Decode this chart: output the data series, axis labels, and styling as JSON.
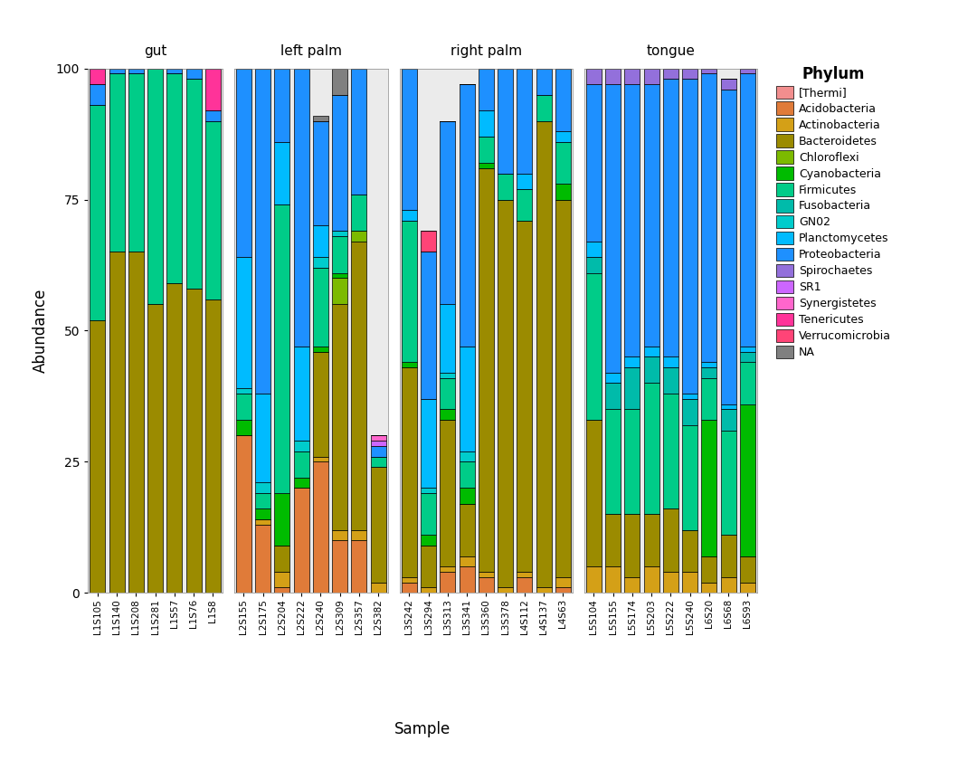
{
  "phylums": [
    "[Thermi]",
    "Acidobacteria",
    "Actinobacteria",
    "Bacteroidetes",
    "Chloroflexi",
    "Cyanobacteria",
    "Firmicutes",
    "Fusobacteria",
    "GN02",
    "Planctomycetes",
    "Proteobacteria",
    "Spirochaetes",
    "SR1",
    "Synergistetes",
    "Tenericutes",
    "Verrucomicrobia",
    "NA"
  ],
  "colors": [
    "#F28E8E",
    "#E07B39",
    "#D4A017",
    "#9B8B00",
    "#7CBA00",
    "#00BB00",
    "#00CC88",
    "#00BBAA",
    "#00CCCC",
    "#00BBFF",
    "#1E90FF",
    "#9370DB",
    "#CC66FF",
    "#FF66CC",
    "#FF3399",
    "#FF4477",
    "#808080"
  ],
  "facets": [
    "gut",
    "left palm",
    "right palm",
    "tongue"
  ],
  "samples": {
    "gut": [
      "L1S105",
      "L1S140",
      "L1S208",
      "L1S281",
      "L1S57",
      "L1S76",
      "L1S8"
    ],
    "left palm": [
      "L2S155",
      "L2S175",
      "L2S204",
      "L2S222",
      "L2S240",
      "L2S309",
      "L2S357",
      "L2S382"
    ],
    "right palm": [
      "L3S242",
      "L3S294",
      "L3S313",
      "L3S341",
      "L3S360",
      "L3S378",
      "L4S112",
      "L4S137",
      "L4S63"
    ],
    "tongue": [
      "L5S104",
      "L5S155",
      "L5S174",
      "L5S203",
      "L5S222",
      "L5S240",
      "L6S20",
      "L6S68",
      "L6S93"
    ]
  },
  "data": {
    "gut": {
      "L1S105": {
        "Tenericutes": 3,
        "Proteobacteria": 4,
        "Firmicutes": 41,
        "Bacteroidetes": 52
      },
      "L1S140": {
        "Proteobacteria": 1,
        "Firmicutes": 34,
        "Bacteroidetes": 65
      },
      "L1S208": {
        "Proteobacteria": 1,
        "Firmicutes": 34,
        "Bacteroidetes": 65
      },
      "L1S281": {
        "Firmicutes": 45,
        "Bacteroidetes": 55
      },
      "L1S57": {
        "Proteobacteria": 1,
        "Firmicutes": 40,
        "Bacteroidetes": 59
      },
      "L1S76": {
        "Proteobacteria": 2,
        "Firmicutes": 40,
        "Bacteroidetes": 58
      },
      "L1S8": {
        "Tenericutes": 8,
        "Proteobacteria": 2,
        "Firmicutes": 34,
        "Bacteroidetes": 56
      }
    },
    "left palm": {
      "L2S155": {
        "Acidobacteria": 30,
        "Cyanobacteria": 3,
        "GN02": 1,
        "Planctomycetes": 25,
        "Proteobacteria": 36,
        "Firmicutes": 5
      },
      "L2S175": {
        "Acidobacteria": 13,
        "Actinobacteria": 1,
        "Cyanobacteria": 2,
        "GN02": 2,
        "Planctomycetes": 17,
        "Proteobacteria": 62,
        "Firmicutes": 3
      },
      "L2S204": {
        "Acidobacteria": 1,
        "Actinobacteria": 3,
        "Bacteroidetes": 5,
        "Cyanobacteria": 10,
        "Planctomycetes": 12,
        "Proteobacteria": 14,
        "Firmicutes": 55
      },
      "L2S222": {
        "Acidobacteria": 20,
        "Cyanobacteria": 2,
        "GN02": 2,
        "Planctomycetes": 18,
        "Proteobacteria": 53,
        "Firmicutes": 5
      },
      "L2S240": {
        "Acidobacteria": 25,
        "Actinobacteria": 1,
        "Bacteroidetes": 20,
        "Cyanobacteria": 1,
        "GN02": 2,
        "Planctomycetes": 6,
        "Proteobacteria": 20,
        "Firmicutes": 15,
        "NA": 1
      },
      "L2S309": {
        "Acidobacteria": 10,
        "Actinobacteria": 2,
        "Bacteroidetes": 43,
        "Chloroflexi": 5,
        "Cyanobacteria": 1,
        "GN02": 1,
        "Proteobacteria": 26,
        "Firmicutes": 7,
        "NA": 5
      },
      "L2S357": {
        "Acidobacteria": 10,
        "Actinobacteria": 2,
        "Bacteroidetes": 55,
        "Chloroflexi": 2,
        "Proteobacteria": 24,
        "Firmicutes": 7
      },
      "L2S382": {
        "Bacteroidetes": 22,
        "Actinobacteria": 2,
        "Proteobacteria": 2,
        "Firmicutes": 2,
        "SR1": 1,
        "Synergistetes": 1
      }
    },
    "right palm": {
      "L3S242": {
        "Acidobacteria": 2,
        "Actinobacteria": 1,
        "Bacteroidetes": 40,
        "Cyanobacteria": 1,
        "Planctomycetes": 2,
        "Proteobacteria": 27,
        "Firmicutes": 27
      },
      "L3S294": {
        "Actinobacteria": 1,
        "Bacteroidetes": 8,
        "Cyanobacteria": 2,
        "GN02": 1,
        "Planctomycetes": 17,
        "Proteobacteria": 28,
        "Firmicutes": 8,
        "Verrucomicrobia": 4
      },
      "L3S313": {
        "Acidobacteria": 4,
        "Actinobacteria": 1,
        "Bacteroidetes": 28,
        "Cyanobacteria": 2,
        "GN02": 1,
        "Planctomycetes": 13,
        "Proteobacteria": 35,
        "Firmicutes": 6
      },
      "L3S341": {
        "Acidobacteria": 5,
        "Actinobacteria": 2,
        "Bacteroidetes": 10,
        "Cyanobacteria": 3,
        "GN02": 2,
        "Planctomycetes": 20,
        "Proteobacteria": 50,
        "Firmicutes": 5
      },
      "L3S360": {
        "Acidobacteria": 3,
        "Actinobacteria": 1,
        "Bacteroidetes": 77,
        "Cyanobacteria": 1,
        "Planctomycetes": 5,
        "Proteobacteria": 8,
        "Firmicutes": 5
      },
      "L3S378": {
        "Actinobacteria": 1,
        "Bacteroidetes": 74,
        "Proteobacteria": 20,
        "Firmicutes": 5
      },
      "L4S112": {
        "Acidobacteria": 3,
        "Actinobacteria": 1,
        "Bacteroidetes": 67,
        "Planctomycetes": 3,
        "Proteobacteria": 20,
        "Firmicutes": 6
      },
      "L4S137": {
        "Actinobacteria": 1,
        "Bacteroidetes": 89,
        "Proteobacteria": 5,
        "Firmicutes": 5
      },
      "L4S63": {
        "Acidobacteria": 1,
        "Actinobacteria": 2,
        "Bacteroidetes": 72,
        "Cyanobacteria": 3,
        "Planctomycetes": 2,
        "Proteobacteria": 12,
        "Firmicutes": 8
      }
    },
    "tongue": {
      "L5S104": {
        "Actinobacteria": 5,
        "Bacteroidetes": 28,
        "Fusobacteria": 3,
        "Planctomycetes": 3,
        "Proteobacteria": 30,
        "Spirochaetes": 3,
        "Firmicutes": 28
      },
      "L5S155": {
        "Actinobacteria": 5,
        "Bacteroidetes": 10,
        "Fusobacteria": 5,
        "Planctomycetes": 2,
        "Proteobacteria": 55,
        "Spirochaetes": 3,
        "Firmicutes": 20
      },
      "L5S174": {
        "Actinobacteria": 3,
        "Bacteroidetes": 12,
        "Fusobacteria": 8,
        "Planctomycetes": 2,
        "Proteobacteria": 52,
        "Spirochaetes": 3,
        "Firmicutes": 20
      },
      "L5S203": {
        "Actinobacteria": 5,
        "Bacteroidetes": 10,
        "Fusobacteria": 5,
        "Planctomycetes": 2,
        "Proteobacteria": 50,
        "Spirochaetes": 3,
        "Firmicutes": 25
      },
      "L5S222": {
        "Actinobacteria": 4,
        "Bacteroidetes": 12,
        "Fusobacteria": 5,
        "Planctomycetes": 2,
        "Proteobacteria": 53,
        "Spirochaetes": 2,
        "Firmicutes": 22
      },
      "L5S240": {
        "Actinobacteria": 4,
        "Bacteroidetes": 8,
        "Fusobacteria": 5,
        "Planctomycetes": 1,
        "Proteobacteria": 60,
        "Spirochaetes": 2,
        "Firmicutes": 20
      },
      "L6S20": {
        "Actinobacteria": 2,
        "Bacteroidetes": 5,
        "Cyanobacteria": 26,
        "Fusobacteria": 2,
        "Planctomycetes": 1,
        "Proteobacteria": 55,
        "Spirochaetes": 1,
        "Firmicutes": 8
      },
      "L6S68": {
        "Actinobacteria": 3,
        "Bacteroidetes": 8,
        "Fusobacteria": 4,
        "Planctomycetes": 1,
        "Proteobacteria": 60,
        "Spirochaetes": 2,
        "Firmicutes": 20
      },
      "L6S93": {
        "Actinobacteria": 2,
        "Bacteroidetes": 5,
        "Cyanobacteria": 29,
        "Fusobacteria": 2,
        "Planctomycetes": 1,
        "Proteobacteria": 52,
        "Spirochaetes": 1,
        "Firmicutes": 8
      }
    }
  },
  "legend_title": "Phylum",
  "xlabel": "Sample",
  "ylabel": "Abundance",
  "ylim": [
    0,
    100
  ],
  "yticks": [
    0,
    25,
    50,
    75,
    100
  ],
  "bg_color": "#EBEBEB",
  "panel_bg": "#F0F0F0",
  "bar_width": 0.8,
  "bar_edge_color": "black",
  "bar_linewidth": 0.5
}
